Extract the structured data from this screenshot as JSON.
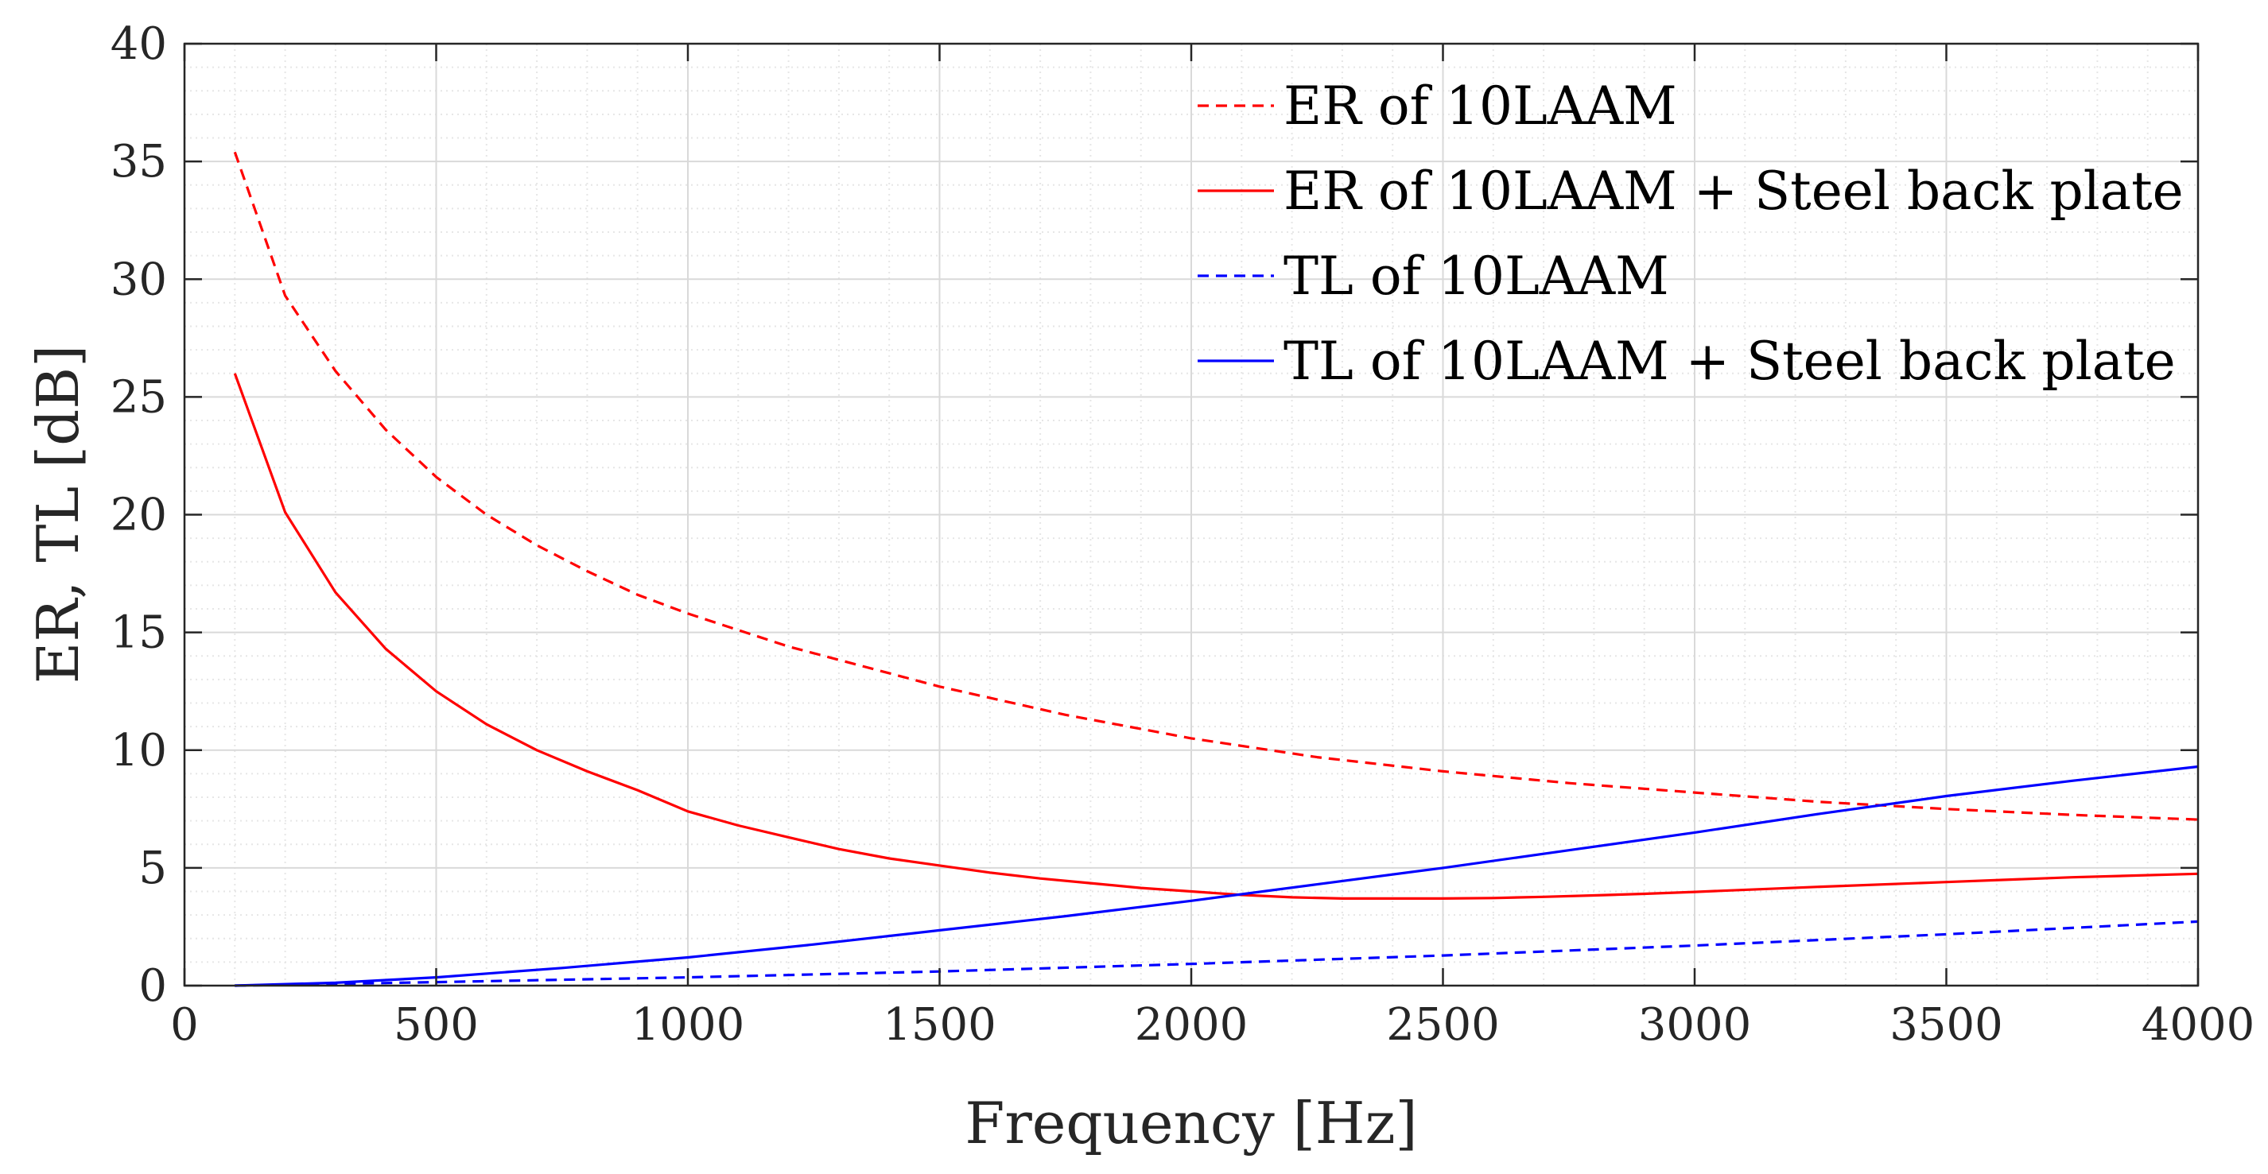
{
  "chart_data": {
    "type": "line",
    "title": "",
    "xlabel": "Frequency [Hz]",
    "ylabel": "ER, TL [dB]",
    "xlim": [
      0,
      4000
    ],
    "ylim": [
      0,
      40
    ],
    "xticks": [
      0,
      500,
      1000,
      1500,
      2000,
      2500,
      3000,
      3500,
      4000
    ],
    "yticks": [
      0,
      5,
      10,
      15,
      20,
      25,
      30,
      35,
      40
    ],
    "grid": true,
    "minor_grid": true,
    "legend_position": "top-right",
    "series": [
      {
        "name": "ER of 10LAAM",
        "color": "#ff0000",
        "style": "dashed",
        "x": [
          100,
          200,
          300,
          400,
          500,
          600,
          700,
          800,
          900,
          1000,
          1200,
          1500,
          1750,
          2000,
          2250,
          2500,
          2750,
          3000,
          3250,
          3500,
          3750,
          4000
        ],
        "y": [
          35.4,
          29.3,
          26.1,
          23.6,
          21.6,
          20.0,
          18.7,
          17.6,
          16.6,
          15.8,
          14.4,
          12.7,
          11.5,
          10.5,
          9.7,
          9.1,
          8.6,
          8.2,
          7.8,
          7.5,
          7.25,
          7.05
        ]
      },
      {
        "name": "ER of 10LAAM + Steel back plate",
        "color": "#ff0000",
        "style": "solid",
        "x": [
          100,
          200,
          300,
          400,
          500,
          600,
          700,
          800,
          900,
          1000,
          1100,
          1200,
          1300,
          1400,
          1500,
          1600,
          1700,
          1800,
          1900,
          2000,
          2100,
          2200,
          2300,
          2400,
          2500,
          2600,
          2700,
          2800,
          2900,
          3000,
          3250,
          3500,
          3750,
          4000
        ],
        "y": [
          26.0,
          20.1,
          16.7,
          14.3,
          12.5,
          11.1,
          10.0,
          9.1,
          8.3,
          7.4,
          6.8,
          6.3,
          5.8,
          5.4,
          5.1,
          4.8,
          4.55,
          4.35,
          4.15,
          4.0,
          3.85,
          3.75,
          3.7,
          3.7,
          3.7,
          3.72,
          3.77,
          3.83,
          3.9,
          3.98,
          4.2,
          4.4,
          4.6,
          4.75
        ]
      },
      {
        "name": "TL of 10LAAM",
        "color": "#0000ff",
        "style": "dashed",
        "x": [
          100,
          500,
          1000,
          1500,
          2000,
          2500,
          3000,
          3500,
          4000
        ],
        "y": [
          0.0,
          0.15,
          0.35,
          0.6,
          0.92,
          1.28,
          1.7,
          2.18,
          2.72
        ]
      },
      {
        "name": "TL of 10LAAM + Steel back plate",
        "color": "#0000ff",
        "style": "solid",
        "x": [
          100,
          300,
          500,
          750,
          1000,
          1250,
          1500,
          1750,
          2000,
          2250,
          2500,
          2750,
          3000,
          3250,
          3500,
          3750,
          4000
        ],
        "y": [
          0.0,
          0.12,
          0.35,
          0.75,
          1.2,
          1.75,
          2.35,
          2.95,
          3.6,
          4.3,
          5.0,
          5.75,
          6.5,
          7.3,
          8.05,
          8.7,
          9.3
        ]
      }
    ]
  }
}
